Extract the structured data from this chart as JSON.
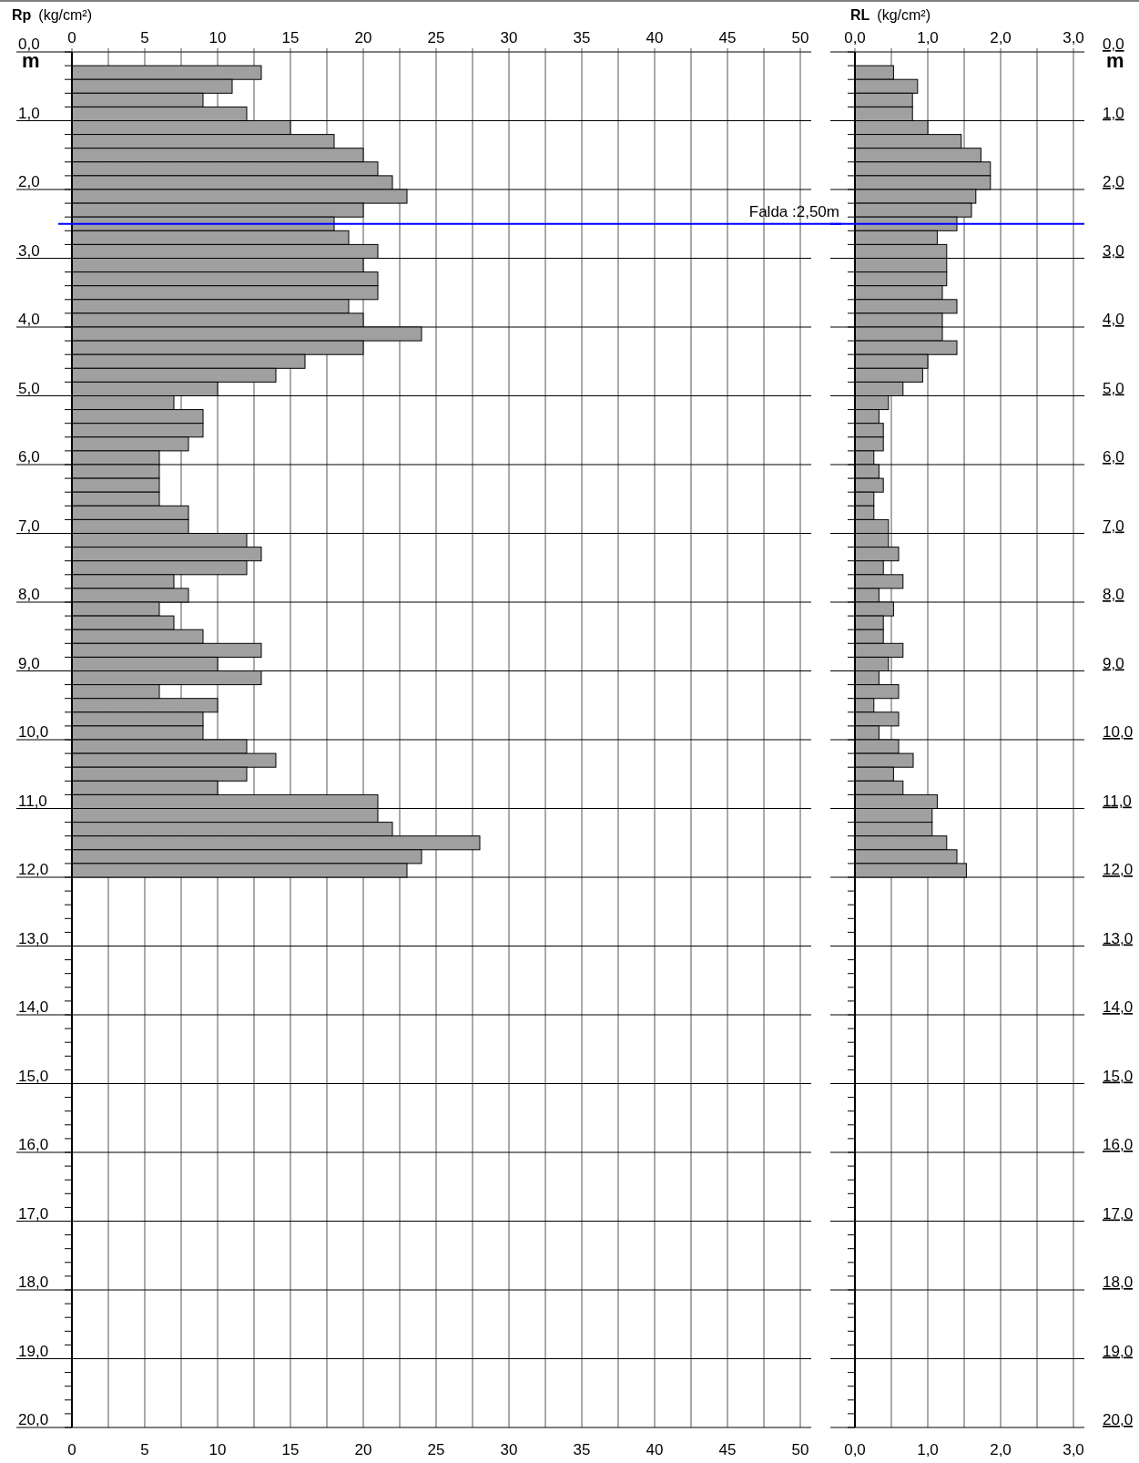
{
  "chart_data": [
    {
      "type": "bar",
      "orientation": "horizontal",
      "title": "Rp",
      "xlabel": "(kg/cm²)",
      "ylabel": "m",
      "grid": true,
      "x": [
        0.3,
        0.5,
        0.7,
        0.9,
        1.1,
        1.3,
        1.5,
        1.7,
        1.9,
        2.1,
        2.3,
        2.5,
        2.7,
        2.9,
        3.1,
        3.3,
        3.5,
        3.7,
        3.9,
        4.1,
        4.3,
        4.5,
        4.7,
        4.9,
        5.1,
        5.3,
        5.5,
        5.7,
        5.9,
        6.1,
        6.3,
        6.5,
        6.7,
        6.9,
        7.1,
        7.3,
        7.5,
        7.7,
        7.9,
        8.1,
        8.3,
        8.5,
        8.7,
        8.9,
        9.1,
        9.3,
        9.5,
        9.7,
        9.9,
        10.1,
        10.3,
        10.5,
        10.7,
        10.9,
        11.1,
        11.3,
        11.5,
        11.7,
        11.9
      ],
      "series": [
        {
          "color": "#a0a0a0",
          "values": [
            13,
            11,
            9,
            12,
            15,
            18,
            20,
            21,
            22,
            23,
            20,
            18,
            19,
            21,
            20,
            21,
            21,
            19,
            20,
            24,
            20,
            16,
            14,
            10,
            7,
            9,
            9,
            8,
            6,
            6,
            6,
            6,
            8,
            8,
            12,
            13,
            12,
            7,
            8,
            6,
            7,
            9,
            13,
            10,
            13,
            6,
            10,
            9,
            9,
            12,
            14,
            12,
            10,
            21,
            21,
            22,
            28,
            24,
            23
          ]
        }
      ],
      "xlim": [
        0,
        50
      ],
      "xticks": [
        0,
        {
          "value": 2.5,
          "label": null
        },
        5,
        {
          "value": 7.5,
          "label": null
        },
        10,
        {
          "value": 12.5,
          "label": null
        },
        15,
        {
          "value": 17.5,
          "label": null
        },
        20,
        {
          "value": 22.5,
          "label": null
        },
        25,
        {
          "value": 27.5,
          "label": null
        },
        30,
        {
          "value": 32.5,
          "label": null
        },
        35,
        {
          "value": 37.5,
          "label": null
        },
        40,
        {
          "value": 42.5,
          "label": null
        },
        45,
        {
          "value": 47.5,
          "label": null
        },
        50
      ],
      "x2lim": [
        0,
        50
      ],
      "x2ticks": [
        0,
        {
          "value": 2.5,
          "label": null
        },
        5,
        {
          "value": 7.5,
          "label": null
        },
        10,
        {
          "value": 12.5,
          "label": null
        },
        15,
        {
          "value": 17.5,
          "label": null
        },
        20,
        {
          "value": 22.5,
          "label": null
        },
        25,
        {
          "value": 27.5,
          "label": null
        },
        30,
        {
          "value": 32.5,
          "label": null
        },
        35,
        {
          "value": 37.5,
          "label": null
        },
        40,
        {
          "value": 42.5,
          "label": null
        },
        45,
        {
          "value": 47.5,
          "label": null
        },
        50
      ],
      "ylim": [
        20,
        0
      ],
      "yticks": [
        {
          "value": 0,
          "label": "0,0"
        },
        {
          "value": 0.2,
          "label": null
        },
        {
          "value": 0.4,
          "label": null
        },
        {
          "value": 0.6,
          "label": null
        },
        {
          "value": 0.8,
          "label": null
        },
        {
          "value": 1,
          "label": "1,0"
        },
        {
          "value": 1.2,
          "label": null
        },
        {
          "value": 1.4,
          "label": null
        },
        {
          "value": 1.6,
          "label": null
        },
        {
          "value": 1.8,
          "label": null
        },
        {
          "value": 2,
          "label": "2,0"
        },
        {
          "value": 2.2,
          "label": null
        },
        {
          "value": 2.4,
          "label": null
        },
        {
          "value": 2.6,
          "label": null
        },
        {
          "value": 2.8,
          "label": null
        },
        {
          "value": 3,
          "label": "3,0"
        },
        {
          "value": 3.2,
          "label": null
        },
        {
          "value": 3.4,
          "label": null
        },
        {
          "value": 3.6,
          "label": null
        },
        {
          "value": 3.8,
          "label": null
        },
        {
          "value": 4,
          "label": "4,0"
        },
        {
          "value": 4.2,
          "label": null
        },
        {
          "value": 4.4,
          "label": null
        },
        {
          "value": 4.6,
          "label": null
        },
        {
          "value": 4.8,
          "label": null
        },
        {
          "value": 5,
          "label": "5,0"
        },
        {
          "value": 5.2,
          "label": null
        },
        {
          "value": 5.4,
          "label": null
        },
        {
          "value": 5.6,
          "label": null
        },
        {
          "value": 5.8,
          "label": null
        },
        {
          "value": 6,
          "label": "6,0"
        },
        {
          "value": 6.2,
          "label": null
        },
        {
          "value": 6.4,
          "label": null
        },
        {
          "value": 6.6,
          "label": null
        },
        {
          "value": 6.8,
          "label": null
        },
        {
          "value": 7,
          "label": "7,0"
        },
        {
          "value": 7.2,
          "label": null
        },
        {
          "value": 7.4,
          "label": null
        },
        {
          "value": 7.6,
          "label": null
        },
        {
          "value": 7.8,
          "label": null
        },
        {
          "value": 8,
          "label": "8,0"
        },
        {
          "value": 8.2,
          "label": null
        },
        {
          "value": 8.4,
          "label": null
        },
        {
          "value": 8.6,
          "label": null
        },
        {
          "value": 8.8,
          "label": null
        },
        {
          "value": 9,
          "label": "9,0"
        },
        {
          "value": 9.2,
          "label": null
        },
        {
          "value": 9.4,
          "label": null
        },
        {
          "value": 9.6,
          "label": null
        },
        {
          "value": 9.8,
          "label": null
        },
        {
          "value": 10,
          "label": "10,0"
        },
        {
          "value": 10.2,
          "label": null
        },
        {
          "value": 10.4,
          "label": null
        },
        {
          "value": 10.6,
          "label": null
        },
        {
          "value": 10.8,
          "label": null
        },
        {
          "value": 11,
          "label": "11,0"
        },
        {
          "value": 11.2,
          "label": null
        },
        {
          "value": 11.4,
          "label": null
        },
        {
          "value": 11.6,
          "label": null
        },
        {
          "value": 11.8,
          "label": null
        },
        {
          "value": 12,
          "label": "12,0"
        },
        {
          "value": 12.2,
          "label": null
        },
        {
          "value": 12.4,
          "label": null
        },
        {
          "value": 12.6,
          "label": null
        },
        {
          "value": 12.8,
          "label": null
        },
        {
          "value": 13,
          "label": "13,0"
        },
        {
          "value": 13.2,
          "label": null
        },
        {
          "value": 13.4,
          "label": null
        },
        {
          "value": 13.6,
          "label": null
        },
        {
          "value": 13.8,
          "label": null
        },
        {
          "value": 14,
          "label": "14,0"
        },
        {
          "value": 14.2,
          "label": null
        },
        {
          "value": 14.4,
          "label": null
        },
        {
          "value": 14.6,
          "label": null
        },
        {
          "value": 14.8,
          "label": null
        },
        {
          "value": 15,
          "label": "15,0"
        },
        {
          "value": 15.2,
          "label": null
        },
        {
          "value": 15.4,
          "label": null
        },
        {
          "value": 15.6,
          "label": null
        },
        {
          "value": 15.8,
          "label": null
        },
        {
          "value": 16,
          "label": "16,0"
        },
        {
          "value": 16.2,
          "label": null
        },
        {
          "value": 16.4,
          "label": null
        },
        {
          "value": 16.6,
          "label": null
        },
        {
          "value": 16.8,
          "label": null
        },
        {
          "value": 17,
          "label": "17,0"
        },
        {
          "value": 17.2,
          "label": null
        },
        {
          "value": 17.4,
          "label": null
        },
        {
          "value": 17.6,
          "label": null
        },
        {
          "value": 17.8,
          "label": null
        },
        {
          "value": 18,
          "label": "18,0"
        },
        {
          "value": 18.2,
          "label": null
        },
        {
          "value": 18.4,
          "label": null
        },
        {
          "value": 18.6,
          "label": null
        },
        {
          "value": 18.8,
          "label": null
        },
        {
          "value": 19,
          "label": "19,0"
        },
        {
          "value": 19.2,
          "label": null
        },
        {
          "value": 19.4,
          "label": null
        },
        {
          "value": 19.6,
          "label": null
        },
        {
          "value": 19.8,
          "label": null
        },
        {
          "value": 20,
          "label": "20,0"
        }
      ],
      "ref_lines": [
        {
          "axis": "y",
          "value": 2.5,
          "label": "Falda :2,50m",
          "color": "#0000ff"
        }
      ]
    },
    {
      "type": "bar",
      "orientation": "horizontal",
      "title": "RL",
      "xlabel": "(kg/cm²)",
      "ylabel": "m",
      "grid": true,
      "x": [
        0.3,
        0.5,
        0.7,
        0.9,
        1.1,
        1.3,
        1.5,
        1.7,
        1.9,
        2.1,
        2.3,
        2.5,
        2.7,
        2.9,
        3.1,
        3.3,
        3.5,
        3.7,
        3.9,
        4.1,
        4.3,
        4.5,
        4.7,
        4.9,
        5.1,
        5.3,
        5.5,
        5.7,
        5.9,
        6.1,
        6.3,
        6.5,
        6.7,
        6.9,
        7.1,
        7.3,
        7.5,
        7.7,
        7.9,
        8.1,
        8.3,
        8.5,
        8.7,
        8.9,
        9.1,
        9.3,
        9.5,
        9.7,
        9.9,
        10.1,
        10.3,
        10.5,
        10.7,
        10.9,
        11.1,
        11.3,
        11.5,
        11.7,
        11.9
      ],
      "series": [
        {
          "color": "#a0a0a0",
          "values": [
            0.53,
            0.86,
            0.79,
            0.79,
            1.0,
            1.46,
            1.73,
            1.86,
            1.86,
            1.66,
            1.6,
            1.4,
            1.13,
            1.26,
            1.26,
            1.26,
            1.2,
            1.4,
            1.2,
            1.2,
            1.4,
            1.0,
            0.93,
            0.66,
            0.46,
            0.33,
            0.39,
            0.39,
            0.26,
            0.33,
            0.39,
            0.26,
            0.26,
            0.46,
            0.46,
            0.6,
            0.39,
            0.66,
            0.33,
            0.53,
            0.39,
            0.39,
            0.66,
            0.46,
            0.33,
            0.6,
            0.26,
            0.6,
            0.33,
            0.6,
            0.8,
            0.53,
            0.66,
            1.13,
            1.06,
            1.06,
            1.26,
            1.4,
            1.53
          ]
        }
      ],
      "xlim": [
        0,
        3.15
      ],
      "xticks": [
        {
          "value": 0,
          "label": "0,0"
        },
        {
          "value": 0.5,
          "label": null
        },
        {
          "value": 1,
          "label": "1,0"
        },
        {
          "value": 1.5,
          "label": null
        },
        {
          "value": 2,
          "label": "2,0"
        },
        {
          "value": 2.5,
          "label": null
        },
        {
          "value": 3,
          "label": "3,0"
        }
      ],
      "x2lim": [
        0,
        3.15
      ],
      "x2ticks": [
        {
          "value": 0,
          "label": "0,0"
        },
        {
          "value": 0.5,
          "label": null
        },
        {
          "value": 1,
          "label": "1,0"
        },
        {
          "value": 1.5,
          "label": null
        },
        {
          "value": 2,
          "label": "2,0"
        },
        {
          "value": 2.5,
          "label": null
        },
        {
          "value": 3,
          "label": "3,0"
        }
      ],
      "ylim": [
        20,
        0
      ],
      "yticks": [
        {
          "value": 0,
          "label": "0,0"
        },
        {
          "value": 0.2,
          "label": null
        },
        {
          "value": 0.4,
          "label": null
        },
        {
          "value": 0.6,
          "label": null
        },
        {
          "value": 0.8,
          "label": null
        },
        {
          "value": 1,
          "label": "1,0"
        },
        {
          "value": 1.2,
          "label": null
        },
        {
          "value": 1.4,
          "label": null
        },
        {
          "value": 1.6,
          "label": null
        },
        {
          "value": 1.8,
          "label": null
        },
        {
          "value": 2,
          "label": "2,0"
        },
        {
          "value": 2.2,
          "label": null
        },
        {
          "value": 2.4,
          "label": null
        },
        {
          "value": 2.6,
          "label": null
        },
        {
          "value": 2.8,
          "label": null
        },
        {
          "value": 3,
          "label": "3,0"
        },
        {
          "value": 3.2,
          "label": null
        },
        {
          "value": 3.4,
          "label": null
        },
        {
          "value": 3.6,
          "label": null
        },
        {
          "value": 3.8,
          "label": null
        },
        {
          "value": 4,
          "label": "4,0"
        },
        {
          "value": 4.2,
          "label": null
        },
        {
          "value": 4.4,
          "label": null
        },
        {
          "value": 4.6,
          "label": null
        },
        {
          "value": 4.8,
          "label": null
        },
        {
          "value": 5,
          "label": "5,0"
        },
        {
          "value": 5.2,
          "label": null
        },
        {
          "value": 5.4,
          "label": null
        },
        {
          "value": 5.6,
          "label": null
        },
        {
          "value": 5.8,
          "label": null
        },
        {
          "value": 6,
          "label": "6,0"
        },
        {
          "value": 6.2,
          "label": null
        },
        {
          "value": 6.4,
          "label": null
        },
        {
          "value": 6.6,
          "label": null
        },
        {
          "value": 6.8,
          "label": null
        },
        {
          "value": 7,
          "label": "7,0"
        },
        {
          "value": 7.2,
          "label": null
        },
        {
          "value": 7.4,
          "label": null
        },
        {
          "value": 7.6,
          "label": null
        },
        {
          "value": 7.8,
          "label": null
        },
        {
          "value": 8,
          "label": "8,0"
        },
        {
          "value": 8.2,
          "label": null
        },
        {
          "value": 8.4,
          "label": null
        },
        {
          "value": 8.6,
          "label": null
        },
        {
          "value": 8.8,
          "label": null
        },
        {
          "value": 9,
          "label": "9,0"
        },
        {
          "value": 9.2,
          "label": null
        },
        {
          "value": 9.4,
          "label": null
        },
        {
          "value": 9.6,
          "label": null
        },
        {
          "value": 9.8,
          "label": null
        },
        {
          "value": 10,
          "label": "10,0"
        },
        {
          "value": 10.2,
          "label": null
        },
        {
          "value": 10.4,
          "label": null
        },
        {
          "value": 10.6,
          "label": null
        },
        {
          "value": 10.8,
          "label": null
        },
        {
          "value": 11,
          "label": "11,0"
        },
        {
          "value": 11.2,
          "label": null
        },
        {
          "value": 11.4,
          "label": null
        },
        {
          "value": 11.6,
          "label": null
        },
        {
          "value": 11.8,
          "label": null
        },
        {
          "value": 12,
          "label": "12,0"
        },
        {
          "value": 12.2,
          "label": null
        },
        {
          "value": 12.4,
          "label": null
        },
        {
          "value": 12.6,
          "label": null
        },
        {
          "value": 12.8,
          "label": null
        },
        {
          "value": 13,
          "label": "13,0"
        },
        {
          "value": 13.2,
          "label": null
        },
        {
          "value": 13.4,
          "label": null
        },
        {
          "value": 13.6,
          "label": null
        },
        {
          "value": 13.8,
          "label": null
        },
        {
          "value": 14,
          "label": "14,0"
        },
        {
          "value": 14.2,
          "label": null
        },
        {
          "value": 14.4,
          "label": null
        },
        {
          "value": 14.6,
          "label": null
        },
        {
          "value": 14.8,
          "label": null
        },
        {
          "value": 15,
          "label": "15,0"
        },
        {
          "value": 15.2,
          "label": null
        },
        {
          "value": 15.4,
          "label": null
        },
        {
          "value": 15.6,
          "label": null
        },
        {
          "value": 15.8,
          "label": null
        },
        {
          "value": 16,
          "label": "16,0"
        },
        {
          "value": 16.2,
          "label": null
        },
        {
          "value": 16.4,
          "label": null
        },
        {
          "value": 16.6,
          "label": null
        },
        {
          "value": 16.8,
          "label": null
        },
        {
          "value": 17,
          "label": "17,0"
        },
        {
          "value": 17.2,
          "label": null
        },
        {
          "value": 17.4,
          "label": null
        },
        {
          "value": 17.6,
          "label": null
        },
        {
          "value": 17.8,
          "label": null
        },
        {
          "value": 18,
          "label": "18,0"
        },
        {
          "value": 18.2,
          "label": null
        },
        {
          "value": 18.4,
          "label": null
        },
        {
          "value": 18.6,
          "label": null
        },
        {
          "value": 18.8,
          "label": null
        },
        {
          "value": 19,
          "label": "19,0"
        },
        {
          "value": 19.2,
          "label": null
        },
        {
          "value": 19.4,
          "label": null
        },
        {
          "value": 19.6,
          "label": null
        },
        {
          "value": 19.8,
          "label": null
        },
        {
          "value": 20,
          "label": "20,0"
        }
      ],
      "ref_lines": [
        {
          "axis": "y",
          "value": 2.5,
          "color": "#0000ff"
        }
      ]
    }
  ]
}
